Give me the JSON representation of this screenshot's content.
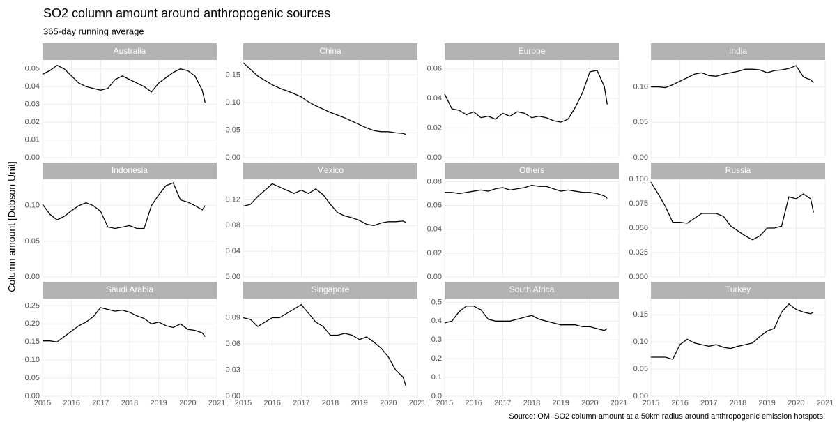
{
  "title": "SO2 column amount around anthropogenic sources",
  "subtitle": "365-day running average",
  "y_label": "Column amount [Dobson Unit]",
  "caption": "Source: OMI SO2 column amount at a 50km radius around anthropogenic emission hotspots.",
  "chart_data": [
    {
      "type": "line",
      "title": "Australia",
      "color": "#000000",
      "xlim": [
        2015,
        2021
      ],
      "xticks": [
        2015,
        2016,
        2017,
        2018,
        2019,
        2020,
        2021
      ],
      "ylim": [
        0,
        0.055
      ],
      "yticks": [
        {
          "value": 0,
          "label": "0.00"
        },
        0.01,
        0.02,
        0.03,
        0.04,
        0.05
      ],
      "x": [
        2015,
        2015.25,
        2015.5,
        2015.75,
        2016,
        2016.25,
        2016.5,
        2016.75,
        2017,
        2017.25,
        2017.5,
        2017.75,
        2018,
        2018.25,
        2018.5,
        2018.75,
        2019,
        2019.25,
        2019.5,
        2019.75,
        2020,
        2020.25,
        2020.5,
        2020.6
      ],
      "values": [
        0.047,
        0.049,
        0.052,
        0.05,
        0.046,
        0.042,
        0.04,
        0.039,
        0.038,
        0.039,
        0.044,
        0.046,
        0.044,
        0.042,
        0.04,
        0.037,
        0.042,
        0.045,
        0.048,
        0.05,
        0.049,
        0.046,
        0.038,
        0.031
      ]
    },
    {
      "type": "line",
      "title": "China",
      "color": "#000000",
      "xlim": [
        2015,
        2021
      ],
      "xticks": [
        2015,
        2016,
        2017,
        2018,
        2019,
        2020,
        2021
      ],
      "ylim": [
        0,
        0.177
      ],
      "yticks": [
        {
          "value": 0,
          "label": "0.00"
        },
        0.05,
        {
          "value": 0.1,
          "label": "0.10"
        },
        0.15
      ],
      "x": [
        2015,
        2015.25,
        2015.5,
        2015.75,
        2016,
        2016.25,
        2016.5,
        2016.75,
        2017,
        2017.25,
        2017.5,
        2017.75,
        2018,
        2018.25,
        2018.5,
        2018.75,
        2019,
        2019.25,
        2019.5,
        2019.75,
        2020,
        2020.25,
        2020.5,
        2020.6
      ],
      "values": [
        0.172,
        0.16,
        0.148,
        0.14,
        0.132,
        0.126,
        0.121,
        0.116,
        0.11,
        0.101,
        0.094,
        0.088,
        0.082,
        0.077,
        0.072,
        0.066,
        0.06,
        0.054,
        0.049,
        0.047,
        0.047,
        0.045,
        0.044,
        0.042
      ]
    },
    {
      "type": "line",
      "title": "Europe",
      "color": "#000000",
      "xlim": [
        2015,
        2021
      ],
      "xticks": [
        2015,
        2016,
        2017,
        2018,
        2019,
        2020,
        2021
      ],
      "ylim": [
        0,
        0.066
      ],
      "yticks": [
        {
          "value": 0,
          "label": "0.00"
        },
        0.02,
        0.04,
        0.06
      ],
      "x": [
        2015,
        2015.25,
        2015.5,
        2015.75,
        2016,
        2016.25,
        2016.5,
        2016.75,
        2017,
        2017.25,
        2017.5,
        2017.75,
        2018,
        2018.25,
        2018.5,
        2018.75,
        2019,
        2019.25,
        2019.5,
        2019.75,
        2020,
        2020.25,
        2020.5,
        2020.6
      ],
      "values": [
        0.043,
        0.033,
        0.032,
        0.029,
        0.031,
        0.027,
        0.028,
        0.026,
        0.03,
        0.028,
        0.031,
        0.03,
        0.027,
        0.028,
        0.027,
        0.025,
        0.024,
        0.026,
        0.034,
        0.044,
        0.058,
        0.059,
        0.048,
        0.036
      ]
    },
    {
      "type": "line",
      "title": "India",
      "color": "#000000",
      "xlim": [
        2015,
        2021
      ],
      "xticks": [
        2015,
        2016,
        2017,
        2018,
        2019,
        2020,
        2021
      ],
      "ylim": [
        0,
        0.138
      ],
      "yticks": [
        {
          "value": 0,
          "label": "0.00"
        },
        0.05,
        {
          "value": 0.1,
          "label": "0.10"
        }
      ],
      "x": [
        2015,
        2015.25,
        2015.5,
        2015.75,
        2016,
        2016.25,
        2016.5,
        2016.75,
        2017,
        2017.25,
        2017.5,
        2017.75,
        2018,
        2018.25,
        2018.5,
        2018.75,
        2019,
        2019.25,
        2019.5,
        2019.75,
        2020,
        2020.25,
        2020.5,
        2020.6
      ],
      "values": [
        0.1,
        0.1,
        0.099,
        0.103,
        0.108,
        0.113,
        0.118,
        0.12,
        0.116,
        0.115,
        0.118,
        0.12,
        0.122,
        0.125,
        0.125,
        0.124,
        0.12,
        0.123,
        0.124,
        0.126,
        0.13,
        0.114,
        0.11,
        0.106
      ]
    },
    {
      "type": "line",
      "title": "Indonesia",
      "color": "#000000",
      "xlim": [
        2015,
        2021
      ],
      "xticks": [
        2015,
        2016,
        2017,
        2018,
        2019,
        2020,
        2021
      ],
      "ylim": [
        0,
        0.137
      ],
      "yticks": [
        {
          "value": 0,
          "label": "0.00"
        },
        0.05,
        {
          "value": 0.1,
          "label": "0.10"
        }
      ],
      "x": [
        2015,
        2015.25,
        2015.5,
        2015.75,
        2016,
        2016.25,
        2016.5,
        2016.75,
        2017,
        2017.25,
        2017.5,
        2017.75,
        2018,
        2018.25,
        2018.5,
        2018.75,
        2019,
        2019.25,
        2019.5,
        2019.75,
        2020,
        2020.25,
        2020.5,
        2020.6
      ],
      "values": [
        0.102,
        0.088,
        0.08,
        0.085,
        0.093,
        0.1,
        0.104,
        0.1,
        0.092,
        0.07,
        0.068,
        0.07,
        0.072,
        0.068,
        0.068,
        0.1,
        0.115,
        0.128,
        0.132,
        0.108,
        0.105,
        0.1,
        0.094,
        0.1
      ]
    },
    {
      "type": "line",
      "title": "Mexico",
      "color": "#000000",
      "xlim": [
        2015,
        2021
      ],
      "xticks": [
        2015,
        2016,
        2017,
        2018,
        2019,
        2020,
        2021
      ],
      "ylim": [
        0,
        0.152
      ],
      "yticks": [
        {
          "value": 0,
          "label": "0.00"
        },
        0.04,
        0.08,
        0.12
      ],
      "x": [
        2015,
        2015.25,
        2015.5,
        2015.75,
        2016,
        2016.25,
        2016.5,
        2016.75,
        2017,
        2017.25,
        2017.5,
        2017.75,
        2018,
        2018.25,
        2018.5,
        2018.75,
        2019,
        2019.25,
        2019.5,
        2019.75,
        2020,
        2020.25,
        2020.5,
        2020.6
      ],
      "values": [
        0.11,
        0.113,
        0.125,
        0.135,
        0.145,
        0.14,
        0.135,
        0.13,
        0.135,
        0.13,
        0.137,
        0.128,
        0.113,
        0.1,
        0.095,
        0.092,
        0.088,
        0.082,
        0.08,
        0.084,
        0.086,
        0.086,
        0.087,
        0.085
      ]
    },
    {
      "type": "line",
      "title": "Others",
      "color": "#000000",
      "xlim": [
        2015,
        2021
      ],
      "xticks": [
        2015,
        2016,
        2017,
        2018,
        2019,
        2020,
        2021
      ],
      "ylim": [
        0,
        0.082
      ],
      "yticks": [
        {
          "value": 0,
          "label": "0.00"
        },
        0.02,
        0.04,
        0.06,
        0.08
      ],
      "x": [
        2015,
        2015.25,
        2015.5,
        2015.75,
        2016,
        2016.25,
        2016.5,
        2016.75,
        2017,
        2017.25,
        2017.5,
        2017.75,
        2018,
        2018.25,
        2018.5,
        2018.75,
        2019,
        2019.25,
        2019.5,
        2019.75,
        2020,
        2020.25,
        2020.5,
        2020.6
      ],
      "values": [
        0.071,
        0.071,
        0.07,
        0.071,
        0.072,
        0.073,
        0.072,
        0.074,
        0.075,
        0.073,
        0.074,
        0.075,
        0.077,
        0.076,
        0.076,
        0.074,
        0.072,
        0.073,
        0.072,
        0.071,
        0.071,
        0.07,
        0.068,
        0.066
      ]
    },
    {
      "type": "line",
      "title": "Russia",
      "color": "#000000",
      "xlim": [
        2015,
        2021
      ],
      "xticks": [
        2015,
        2016,
        2017,
        2018,
        2019,
        2020,
        2021
      ],
      "ylim": [
        0,
        0.1
      ],
      "yticks": [
        {
          "value": 0,
          "label": "0.000"
        },
        0.025,
        {
          "value": 0.05,
          "label": "0.050"
        },
        0.075,
        {
          "value": 0.1,
          "label": "0.100"
        }
      ],
      "x": [
        2015,
        2015.25,
        2015.5,
        2015.75,
        2016,
        2016.25,
        2016.5,
        2016.75,
        2017,
        2017.25,
        2017.5,
        2017.75,
        2018,
        2018.25,
        2018.5,
        2018.75,
        2019,
        2019.25,
        2019.5,
        2019.75,
        2020,
        2020.25,
        2020.5,
        2020.6
      ],
      "values": [
        0.097,
        0.085,
        0.072,
        0.056,
        0.056,
        0.055,
        0.06,
        0.065,
        0.065,
        0.065,
        0.062,
        0.052,
        0.047,
        0.042,
        0.038,
        0.042,
        0.05,
        0.05,
        0.052,
        0.082,
        0.08,
        0.085,
        0.08,
        0.066
      ]
    },
    {
      "type": "line",
      "title": "Saudi Arabia",
      "color": "#000000",
      "xlim": [
        2015,
        2021
      ],
      "xticks": [
        2015,
        2016,
        2017,
        2018,
        2019,
        2020,
        2021
      ],
      "ylim": [
        0,
        0.27
      ],
      "yticks": [
        {
          "value": 0,
          "label": "0.00"
        },
        0.05,
        {
          "value": 0.1,
          "label": "0.10"
        },
        0.15,
        {
          "value": 0.2,
          "label": "0.20"
        },
        0.25
      ],
      "x": [
        2015,
        2015.25,
        2015.5,
        2015.75,
        2016,
        2016.25,
        2016.5,
        2016.75,
        2017,
        2017.25,
        2017.5,
        2017.75,
        2018,
        2018.25,
        2018.5,
        2018.75,
        2019,
        2019.25,
        2019.5,
        2019.75,
        2020,
        2020.25,
        2020.5,
        2020.6
      ],
      "values": [
        0.153,
        0.153,
        0.15,
        0.165,
        0.18,
        0.195,
        0.205,
        0.22,
        0.245,
        0.24,
        0.235,
        0.238,
        0.232,
        0.222,
        0.215,
        0.2,
        0.205,
        0.195,
        0.19,
        0.2,
        0.185,
        0.182,
        0.175,
        0.165
      ]
    },
    {
      "type": "line",
      "title": "Singapore",
      "color": "#000000",
      "xlim": [
        2015,
        2021
      ],
      "xticks": [
        2015,
        2016,
        2017,
        2018,
        2019,
        2020,
        2021
      ],
      "ylim": [
        0,
        0.112
      ],
      "yticks": [
        {
          "value": 0,
          "label": "0.00"
        },
        0.03,
        0.06,
        0.09
      ],
      "x": [
        2015,
        2015.25,
        2015.5,
        2015.75,
        2016,
        2016.25,
        2016.5,
        2016.75,
        2017,
        2017.25,
        2017.5,
        2017.75,
        2018,
        2018.25,
        2018.5,
        2018.75,
        2019,
        2019.25,
        2019.5,
        2019.75,
        2020,
        2020.25,
        2020.5,
        2020.6
      ],
      "values": [
        0.09,
        0.088,
        0.08,
        0.085,
        0.09,
        0.09,
        0.095,
        0.1,
        0.105,
        0.095,
        0.085,
        0.08,
        0.07,
        0.07,
        0.072,
        0.07,
        0.065,
        0.068,
        0.062,
        0.055,
        0.045,
        0.03,
        0.022,
        0.012
      ]
    },
    {
      "type": "line",
      "title": "South Africa",
      "color": "#000000",
      "xlim": [
        2015,
        2021
      ],
      "xticks": [
        2015,
        2016,
        2017,
        2018,
        2019,
        2020,
        2021
      ],
      "ylim": [
        0,
        0.52
      ],
      "yticks": [
        {
          "value": 0,
          "label": "0.0"
        },
        0.1,
        0.2,
        0.3,
        0.4,
        0.5
      ],
      "x": [
        2015,
        2015.25,
        2015.5,
        2015.75,
        2016,
        2016.25,
        2016.5,
        2016.75,
        2017,
        2017.25,
        2017.5,
        2017.75,
        2018,
        2018.25,
        2018.5,
        2018.75,
        2019,
        2019.25,
        2019.5,
        2019.75,
        2020,
        2020.25,
        2020.5,
        2020.6
      ],
      "values": [
        0.39,
        0.4,
        0.45,
        0.48,
        0.48,
        0.46,
        0.41,
        0.4,
        0.4,
        0.4,
        0.41,
        0.42,
        0.43,
        0.41,
        0.4,
        0.39,
        0.38,
        0.38,
        0.38,
        0.37,
        0.37,
        0.36,
        0.35,
        0.36
      ]
    },
    {
      "type": "line",
      "title": "Turkey",
      "color": "#000000",
      "xlim": [
        2015,
        2021
      ],
      "xticks": [
        2015,
        2016,
        2017,
        2018,
        2019,
        2020,
        2021
      ],
      "ylim": [
        0,
        0.18
      ],
      "yticks": [
        {
          "value": 0,
          "label": "0.00"
        },
        0.05,
        {
          "value": 0.1,
          "label": "0.10"
        },
        0.15
      ],
      "x": [
        2015,
        2015.25,
        2015.5,
        2015.75,
        2016,
        2016.25,
        2016.5,
        2016.75,
        2017,
        2017.25,
        2017.5,
        2017.75,
        2018,
        2018.25,
        2018.5,
        2018.75,
        2019,
        2019.25,
        2019.5,
        2019.75,
        2020,
        2020.25,
        2020.5,
        2020.6
      ],
      "values": [
        0.072,
        0.072,
        0.072,
        0.068,
        0.095,
        0.105,
        0.098,
        0.095,
        0.092,
        0.095,
        0.09,
        0.088,
        0.092,
        0.095,
        0.098,
        0.11,
        0.12,
        0.125,
        0.155,
        0.17,
        0.16,
        0.155,
        0.152,
        0.155
      ]
    }
  ]
}
